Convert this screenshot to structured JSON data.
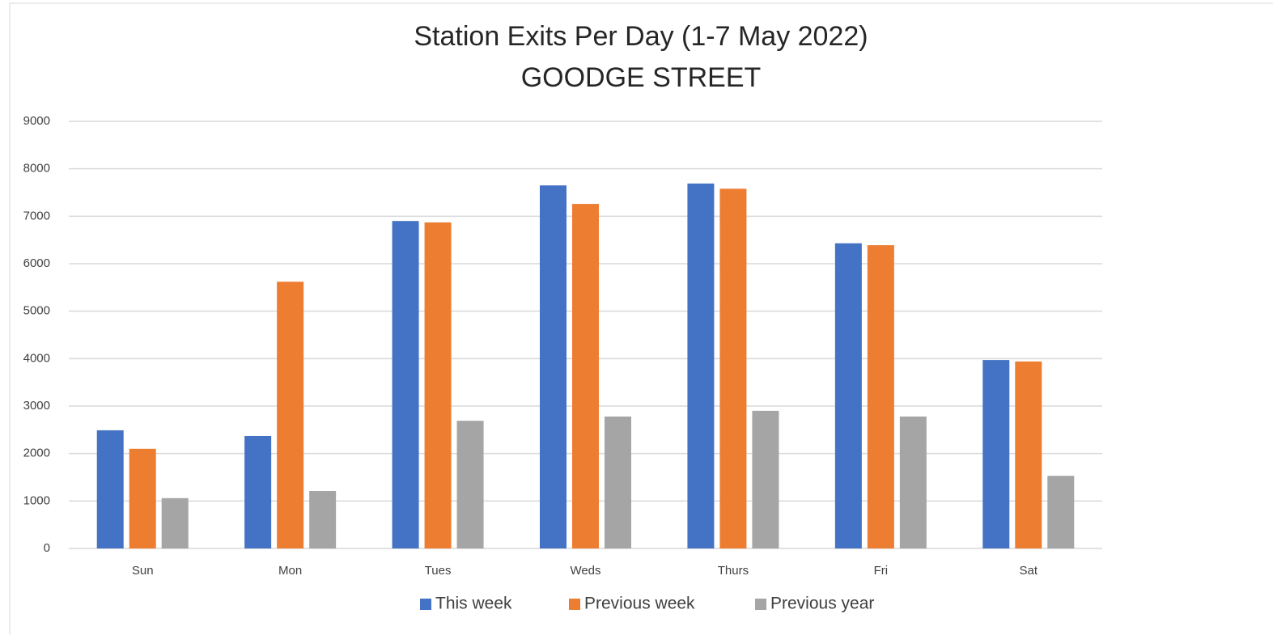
{
  "chart_data": {
    "type": "bar",
    "title": "Station Exits Per Day (1-7 May 2022)",
    "subtitle": "GOODGE STREET",
    "categories": [
      "Sun",
      "Mon",
      "Tues",
      "Weds",
      "Thurs",
      "Fri",
      "Sat"
    ],
    "series": [
      {
        "name": "This week",
        "color": "#4472c4",
        "values": [
          2490,
          2370,
          6900,
          7650,
          7690,
          6430,
          3970
        ]
      },
      {
        "name": "Previous week",
        "color": "#ed7d31",
        "values": [
          2100,
          5620,
          6870,
          7260,
          7580,
          6390,
          3940
        ]
      },
      {
        "name": "Previous year",
        "color": "#a5a5a5",
        "values": [
          1060,
          1210,
          2690,
          2780,
          2900,
          2780,
          1530
        ]
      }
    ],
    "ylim": [
      0,
      9000
    ],
    "yticks": [
      0,
      1000,
      2000,
      3000,
      4000,
      5000,
      6000,
      7000,
      8000,
      9000
    ],
    "grid": true,
    "legend": "bottom"
  }
}
